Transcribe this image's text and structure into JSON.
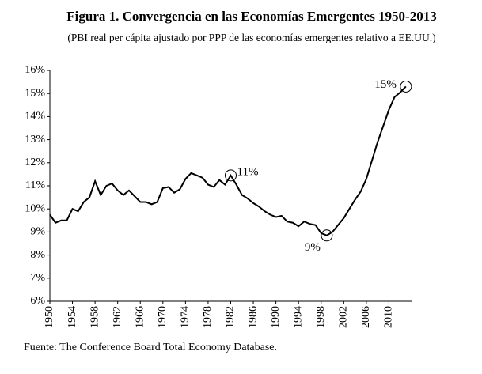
{
  "chart_data": {
    "type": "line",
    "title": "Figura 1. Convergencia en las Economías Emergentes 1950-2013",
    "subtitle": "(PBI real per cápita ajustado por PPP de las economías emergentes relativo a EE.UU.)",
    "source": "Fuente: The Conference Board Total Economy Database.",
    "x": [
      1950,
      1951,
      1952,
      1953,
      1954,
      1955,
      1956,
      1957,
      1958,
      1959,
      1960,
      1961,
      1962,
      1963,
      1964,
      1965,
      1966,
      1967,
      1968,
      1969,
      1970,
      1971,
      1972,
      1973,
      1974,
      1975,
      1976,
      1977,
      1978,
      1979,
      1980,
      1981,
      1982,
      1983,
      1984,
      1985,
      1986,
      1987,
      1988,
      1989,
      1990,
      1991,
      1992,
      1993,
      1994,
      1995,
      1996,
      1997,
      1998,
      1999,
      2000,
      2001,
      2002,
      2003,
      2004,
      2005,
      2006,
      2007,
      2008,
      2009,
      2010,
      2011,
      2012,
      2013
    ],
    "series": [
      {
        "color": "#000000",
        "values": [
          9.75,
          9.4,
          9.5,
          9.5,
          10.0,
          9.9,
          10.3,
          10.5,
          11.2,
          10.6,
          11.0,
          11.1,
          10.8,
          10.6,
          10.8,
          10.55,
          10.3,
          10.3,
          10.2,
          10.3,
          10.9,
          10.95,
          10.7,
          10.85,
          11.3,
          11.55,
          11.45,
          11.35,
          11.05,
          10.95,
          11.25,
          11.05,
          11.45,
          11.05,
          10.6,
          10.45,
          10.25,
          10.1,
          9.9,
          9.75,
          9.65,
          9.7,
          9.45,
          9.4,
          9.25,
          9.45,
          9.35,
          9.3,
          8.95,
          8.85,
          9.0,
          9.3,
          9.6,
          10.0,
          10.4,
          10.75,
          11.3,
          12.1,
          12.9,
          13.6,
          14.3,
          14.85,
          15.05,
          15.3
        ]
      }
    ],
    "annotations": [
      {
        "text": "11%",
        "x": 1982
      },
      {
        "text": "9%",
        "x": 1999
      },
      {
        "text": "15%",
        "x": 2013
      }
    ],
    "xlim": [
      1950,
      2014
    ],
    "xticks": [
      1950,
      1954,
      1958,
      1962,
      1966,
      1970,
      1974,
      1978,
      1982,
      1986,
      1990,
      1994,
      1998,
      2002,
      2006,
      2010
    ],
    "ylim": [
      6,
      16
    ],
    "yticks": [
      {
        "value": 6,
        "label": "6%"
      },
      {
        "value": 7,
        "label": "7%"
      },
      {
        "value": 8,
        "label": "8%"
      },
      {
        "value": 9,
        "label": "9%"
      },
      {
        "value": 10,
        "label": "10%"
      },
      {
        "value": 11,
        "label": "11%"
      },
      {
        "value": 12,
        "label": "12%"
      },
      {
        "value": 13,
        "label": "13%"
      },
      {
        "value": 14,
        "label": "14%"
      },
      {
        "value": 15,
        "label": "15%"
      },
      {
        "value": 16,
        "label": "16%"
      }
    ]
  }
}
